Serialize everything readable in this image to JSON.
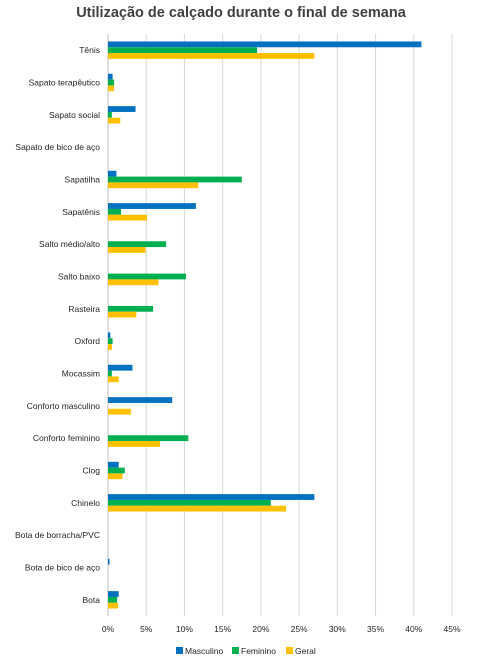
{
  "chart_data": {
    "type": "bar",
    "orientation": "horizontal",
    "title": "Utilização de calçado durante o final de semana",
    "categories": [
      "Tênis",
      "Sapato terapêutico",
      "Sapato social",
      "Sapato de bico de aço",
      "Sapatilha",
      "Sapatênis",
      "Salto médio/alto",
      "Salto baixo",
      "Rasteira",
      "Oxford",
      "Mocassim",
      "Conforto masculino",
      "Conforto feminino",
      "Clog",
      "Chinelo",
      "Bota de borracha/PVC",
      "Bota de bico de aço",
      "Bota"
    ],
    "series": [
      {
        "name": "Masculino",
        "color": "#0070c0",
        "values": [
          41.0,
          0.6,
          3.6,
          0,
          1.1,
          11.5,
          0,
          0,
          0,
          0.3,
          3.2,
          8.4,
          0,
          1.4,
          27.0,
          0,
          0.2,
          1.4
        ]
      },
      {
        "name": "Feminino",
        "color": "#00b050",
        "values": [
          19.5,
          0.8,
          0.5,
          0,
          17.5,
          1.7,
          7.6,
          10.2,
          5.9,
          0.6,
          0.5,
          0,
          10.5,
          2.2,
          21.3,
          0,
          0,
          1.2
        ]
      },
      {
        "name": "Geral",
        "color": "#ffc000",
        "values": [
          27.0,
          0.8,
          1.6,
          0,
          11.8,
          5.1,
          4.9,
          6.6,
          3.7,
          0.5,
          1.4,
          3.0,
          6.8,
          1.9,
          23.3,
          0,
          0,
          1.3
        ]
      }
    ],
    "x_ticks": [
      "0%",
      "5%",
      "10%",
      "15%",
      "20%",
      "25%",
      "30%",
      "35%",
      "40%",
      "45%"
    ],
    "xlim": [
      0,
      45
    ],
    "grid": true,
    "legend_position": "bottom"
  }
}
